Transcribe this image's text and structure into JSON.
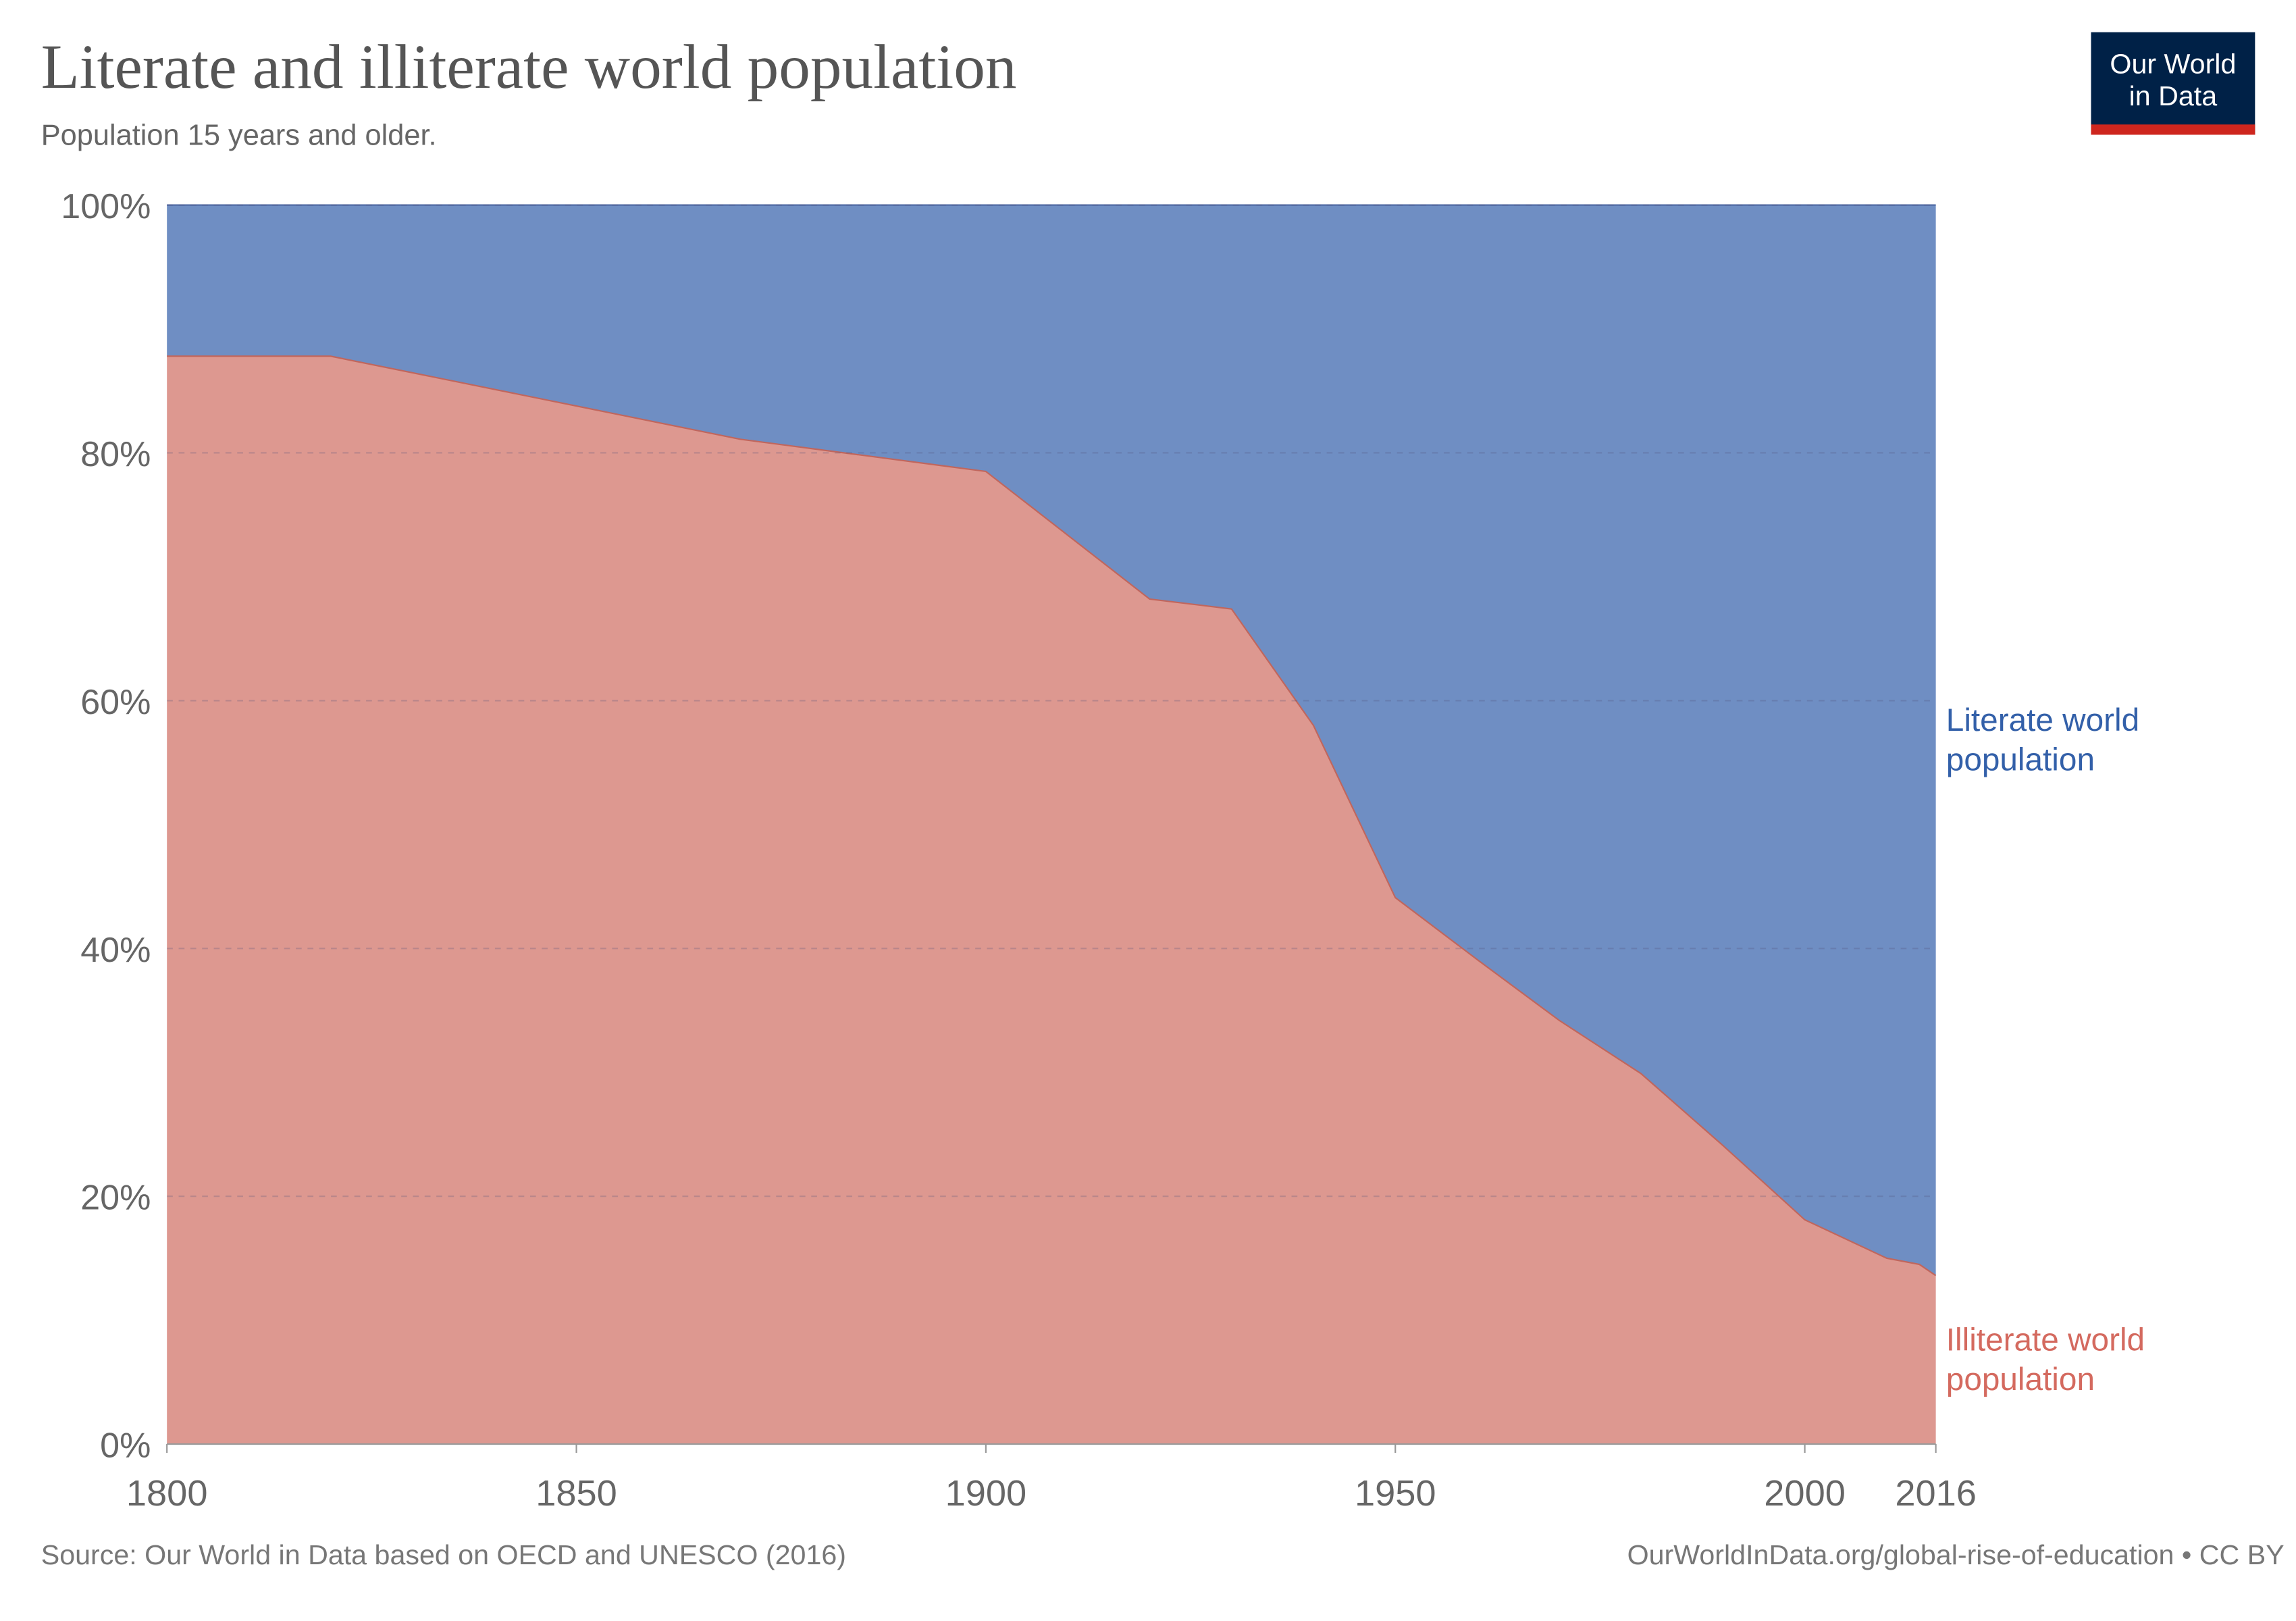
{
  "chart_data": {
    "type": "area",
    "stacked": true,
    "relative": true,
    "title": "Literate and illiterate world population",
    "subtitle": "Population 15 years and older.",
    "xlim": [
      1800,
      2016
    ],
    "ylim": [
      0,
      100
    ],
    "x_ticks": [
      "1800",
      "1850",
      "1900",
      "1950",
      "2000",
      "2016"
    ],
    "y_ticks": [
      "0%",
      "20%",
      "40%",
      "60%",
      "80%",
      "100%"
    ],
    "grid": "horizontal-dashed",
    "legend": "right",
    "x": [
      1800,
      1820,
      1870,
      1900,
      1920,
      1930,
      1940,
      1950,
      1960,
      1970,
      1980,
      1990,
      2000,
      2010,
      2014,
      2016
    ],
    "series": [
      {
        "name": "Illiterate world population",
        "color": "#dd9890",
        "label_color": "#d46a5f",
        "values": [
          87.8,
          87.8,
          81.1,
          78.5,
          68.2,
          67.4,
          58.0,
          44.1,
          39.1,
          34.2,
          29.9,
          24.1,
          18.1,
          15.0,
          14.5,
          13.6
        ]
      },
      {
        "name": "Literate world population",
        "color": "#6f8ec3",
        "label_color": "#3360a9",
        "values": [
          12.2,
          12.2,
          18.9,
          21.5,
          31.8,
          32.6,
          42.0,
          55.9,
          60.9,
          65.8,
          70.1,
          75.9,
          81.9,
          85.0,
          85.5,
          86.4
        ]
      }
    ]
  },
  "header": {
    "title": "Literate and illiterate world population",
    "subtitle": "Population 15 years and older."
  },
  "logo": {
    "line1": "Our World",
    "line2": "in Data"
  },
  "legend": {
    "literate_line1": "Literate world",
    "literate_line2": "population",
    "illiterate_line1": "Illiterate world",
    "illiterate_line2": "population"
  },
  "footer": {
    "source": "Source: Our World in Data based on OECD and UNESCO (2016)",
    "url": "OurWorldInData.org/global-rise-of-education • CC BY"
  }
}
